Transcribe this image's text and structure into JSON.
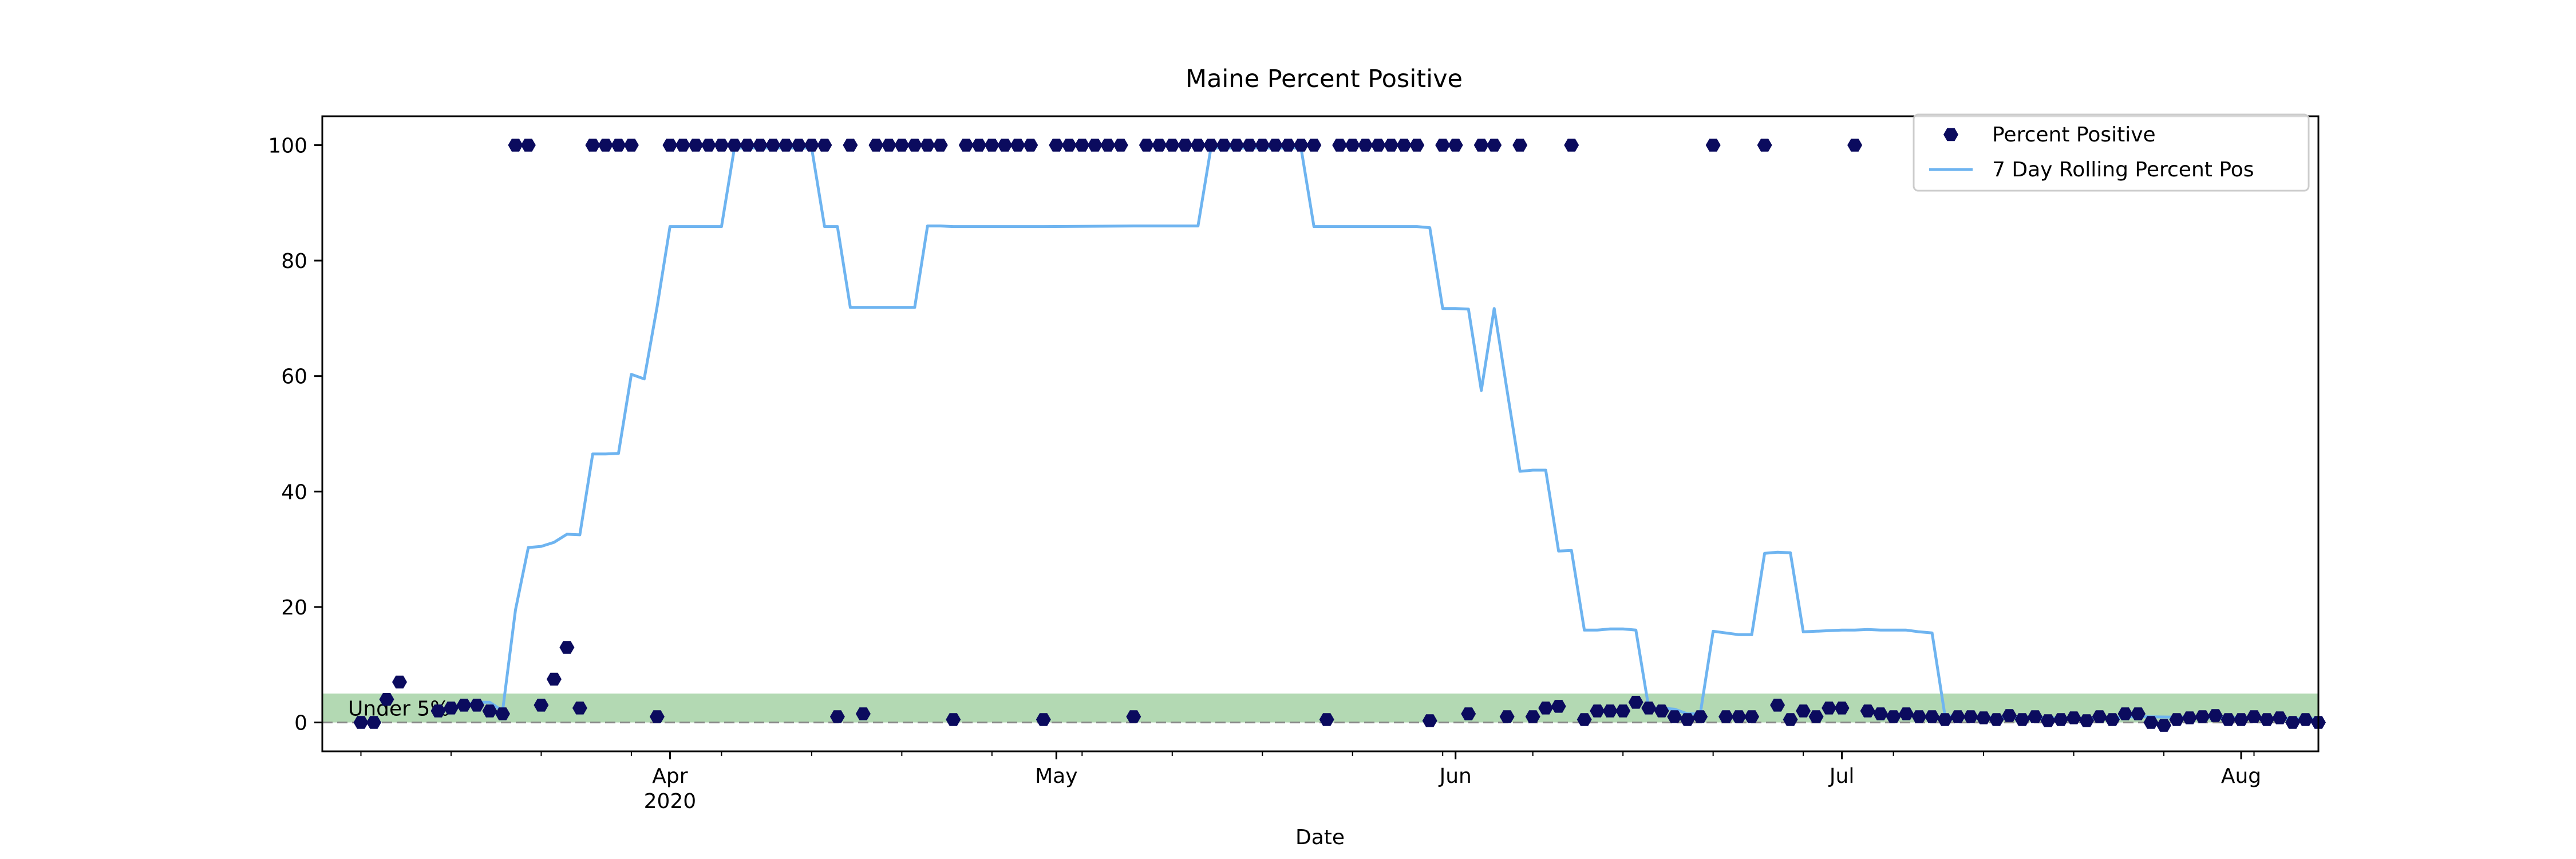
{
  "chart_data": {
    "type": "scatter",
    "title": "Maine Percent Positive",
    "xlabel": "Date",
    "ylabel": "",
    "x_range": [
      "2020-03-05",
      "2020-08-07"
    ],
    "ylim": [
      -5,
      105
    ],
    "y_ticks": [
      0,
      20,
      40,
      60,
      80,
      100
    ],
    "x_ticks": [
      {
        "date": "2020-04-01",
        "label": "Apr",
        "sublabel": "2020"
      },
      {
        "date": "2020-05-01",
        "label": "May",
        "sublabel": ""
      },
      {
        "date": "2020-06-01",
        "label": "Jun",
        "sublabel": ""
      },
      {
        "date": "2020-07-01",
        "label": "Jul",
        "sublabel": ""
      },
      {
        "date": "2020-08-01",
        "label": "Aug",
        "sublabel": ""
      }
    ],
    "grid": false,
    "legend_position": "top-right",
    "band": {
      "y0": 0,
      "y1": 5,
      "label": "Under 5%",
      "color": "#b3d9b3"
    },
    "reference_line": {
      "y": 0,
      "color": "#888888",
      "style": "dashed"
    },
    "series": [
      {
        "name": "Percent Positive",
        "kind": "scatter",
        "color": "#0b0b5e",
        "points": [
          [
            "2020-03-08",
            0
          ],
          [
            "2020-03-09",
            0
          ],
          [
            "2020-03-10",
            4
          ],
          [
            "2020-03-11",
            7
          ],
          [
            "2020-03-14",
            2
          ],
          [
            "2020-03-15",
            2.5
          ],
          [
            "2020-03-16",
            3
          ],
          [
            "2020-03-17",
            3
          ],
          [
            "2020-03-18",
            2
          ],
          [
            "2020-03-19",
            1.5
          ],
          [
            "2020-03-20",
            100
          ],
          [
            "2020-03-21",
            100
          ],
          [
            "2020-03-22",
            3
          ],
          [
            "2020-03-23",
            7.5
          ],
          [
            "2020-03-24",
            13
          ],
          [
            "2020-03-25",
            2.5
          ],
          [
            "2020-03-26",
            100
          ],
          [
            "2020-03-27",
            100
          ],
          [
            "2020-03-28",
            100
          ],
          [
            "2020-03-29",
            100
          ],
          [
            "2020-03-31",
            1
          ],
          [
            "2020-04-01",
            100
          ],
          [
            "2020-04-02",
            100
          ],
          [
            "2020-04-03",
            100
          ],
          [
            "2020-04-04",
            100
          ],
          [
            "2020-04-05",
            100
          ],
          [
            "2020-04-06",
            100
          ],
          [
            "2020-04-07",
            100
          ],
          [
            "2020-04-08",
            100
          ],
          [
            "2020-04-09",
            100
          ],
          [
            "2020-04-10",
            100
          ],
          [
            "2020-04-11",
            100
          ],
          [
            "2020-04-12",
            100
          ],
          [
            "2020-04-13",
            100
          ],
          [
            "2020-04-14",
            1
          ],
          [
            "2020-04-15",
            100
          ],
          [
            "2020-04-16",
            1.5
          ],
          [
            "2020-04-17",
            100
          ],
          [
            "2020-04-18",
            100
          ],
          [
            "2020-04-19",
            100
          ],
          [
            "2020-04-20",
            100
          ],
          [
            "2020-04-21",
            100
          ],
          [
            "2020-04-22",
            100
          ],
          [
            "2020-04-23",
            0.5
          ],
          [
            "2020-04-24",
            100
          ],
          [
            "2020-04-25",
            100
          ],
          [
            "2020-04-26",
            100
          ],
          [
            "2020-04-27",
            100
          ],
          [
            "2020-04-28",
            100
          ],
          [
            "2020-04-29",
            100
          ],
          [
            "2020-04-30",
            0.5
          ],
          [
            "2020-05-01",
            100
          ],
          [
            "2020-05-02",
            100
          ],
          [
            "2020-05-03",
            100
          ],
          [
            "2020-05-04",
            100
          ],
          [
            "2020-05-05",
            100
          ],
          [
            "2020-05-06",
            100
          ],
          [
            "2020-05-07",
            1
          ],
          [
            "2020-05-08",
            100
          ],
          [
            "2020-05-09",
            100
          ],
          [
            "2020-05-10",
            100
          ],
          [
            "2020-05-11",
            100
          ],
          [
            "2020-05-12",
            100
          ],
          [
            "2020-05-13",
            100
          ],
          [
            "2020-05-14",
            100
          ],
          [
            "2020-05-15",
            100
          ],
          [
            "2020-05-16",
            100
          ],
          [
            "2020-05-17",
            100
          ],
          [
            "2020-05-18",
            100
          ],
          [
            "2020-05-19",
            100
          ],
          [
            "2020-05-20",
            100
          ],
          [
            "2020-05-21",
            100
          ],
          [
            "2020-05-22",
            0.5
          ],
          [
            "2020-05-23",
            100
          ],
          [
            "2020-05-24",
            100
          ],
          [
            "2020-05-25",
            100
          ],
          [
            "2020-05-26",
            100
          ],
          [
            "2020-05-27",
            100
          ],
          [
            "2020-05-28",
            100
          ],
          [
            "2020-05-29",
            100
          ],
          [
            "2020-05-30",
            0.3
          ],
          [
            "2020-05-31",
            100
          ],
          [
            "2020-06-01",
            100
          ],
          [
            "2020-06-02",
            1.5
          ],
          [
            "2020-06-03",
            100
          ],
          [
            "2020-06-04",
            100
          ],
          [
            "2020-06-05",
            1
          ],
          [
            "2020-06-06",
            100
          ],
          [
            "2020-06-07",
            1
          ],
          [
            "2020-06-08",
            2.5
          ],
          [
            "2020-06-09",
            2.8
          ],
          [
            "2020-06-10",
            100
          ],
          [
            "2020-06-11",
            0.5
          ],
          [
            "2020-06-12",
            2
          ],
          [
            "2020-06-13",
            2
          ],
          [
            "2020-06-14",
            2
          ],
          [
            "2020-06-15",
            3.5
          ],
          [
            "2020-06-16",
            2.5
          ],
          [
            "2020-06-17",
            2
          ],
          [
            "2020-06-18",
            1
          ],
          [
            "2020-06-19",
            0.5
          ],
          [
            "2020-06-20",
            1
          ],
          [
            "2020-06-21",
            100
          ],
          [
            "2020-06-22",
            1
          ],
          [
            "2020-06-23",
            1
          ],
          [
            "2020-06-24",
            1
          ],
          [
            "2020-06-25",
            100
          ],
          [
            "2020-06-26",
            3
          ],
          [
            "2020-06-27",
            0.5
          ],
          [
            "2020-06-28",
            2
          ],
          [
            "2020-06-29",
            1
          ],
          [
            "2020-06-30",
            2.5
          ],
          [
            "2020-07-01",
            2.5
          ],
          [
            "2020-07-02",
            100
          ],
          [
            "2020-07-03",
            2
          ],
          [
            "2020-07-04",
            1.5
          ],
          [
            "2020-07-05",
            1
          ],
          [
            "2020-07-06",
            1.5
          ],
          [
            "2020-07-07",
            1
          ],
          [
            "2020-07-08",
            1
          ],
          [
            "2020-07-09",
            0.5
          ],
          [
            "2020-07-10",
            1
          ],
          [
            "2020-07-11",
            1
          ],
          [
            "2020-07-12",
            0.8
          ],
          [
            "2020-07-13",
            0.5
          ],
          [
            "2020-07-14",
            1.2
          ],
          [
            "2020-07-15",
            0.5
          ],
          [
            "2020-07-16",
            1
          ],
          [
            "2020-07-17",
            0.3
          ],
          [
            "2020-07-18",
            0.5
          ],
          [
            "2020-07-19",
            0.8
          ],
          [
            "2020-07-20",
            0.3
          ],
          [
            "2020-07-21",
            1
          ],
          [
            "2020-07-22",
            0.5
          ],
          [
            "2020-07-23",
            1.5
          ],
          [
            "2020-07-24",
            1.5
          ],
          [
            "2020-07-25",
            0
          ],
          [
            "2020-07-26",
            -0.5
          ],
          [
            "2020-07-27",
            0.5
          ],
          [
            "2020-07-28",
            0.8
          ],
          [
            "2020-07-29",
            1
          ],
          [
            "2020-07-30",
            1.2
          ],
          [
            "2020-07-31",
            0.5
          ],
          [
            "2020-08-01",
            0.5
          ],
          [
            "2020-08-02",
            1
          ],
          [
            "2020-08-03",
            0.5
          ],
          [
            "2020-08-04",
            0.8
          ],
          [
            "2020-08-05",
            0
          ],
          [
            "2020-08-06",
            0.5
          ],
          [
            "2020-08-07",
            0
          ]
        ]
      },
      {
        "name": "7 Day Rolling Percent Pos",
        "kind": "line",
        "color": "#6eb4f0",
        "points": [
          [
            "2020-03-14",
            2
          ],
          [
            "2020-03-15",
            2.5
          ],
          [
            "2020-03-16",
            3
          ],
          [
            "2020-03-17",
            3.5
          ],
          [
            "2020-03-18",
            3.5
          ],
          [
            "2020-03-19",
            2
          ],
          [
            "2020-03-20",
            19.5
          ],
          [
            "2020-03-21",
            30.3
          ],
          [
            "2020-03-22",
            30.5
          ],
          [
            "2020-03-23",
            31.2
          ],
          [
            "2020-03-24",
            32.6
          ],
          [
            "2020-03-25",
            32.5
          ],
          [
            "2020-03-26",
            46.5
          ],
          [
            "2020-03-27",
            46.5
          ],
          [
            "2020-03-28",
            46.6
          ],
          [
            "2020-03-29",
            60.3
          ],
          [
            "2020-03-30",
            59.5
          ],
          [
            "2020-03-31",
            72
          ],
          [
            "2020-04-01",
            85.9
          ],
          [
            "2020-04-02",
            85.9
          ],
          [
            "2020-04-03",
            85.9
          ],
          [
            "2020-04-04",
            85.9
          ],
          [
            "2020-04-05",
            85.9
          ],
          [
            "2020-04-06",
            99.5
          ],
          [
            "2020-04-07",
            99.5
          ],
          [
            "2020-04-08",
            99.5
          ],
          [
            "2020-04-09",
            99.5
          ],
          [
            "2020-04-10",
            99.5
          ],
          [
            "2020-04-11",
            99.5
          ],
          [
            "2020-04-12",
            99.5
          ],
          [
            "2020-04-13",
            85.9
          ],
          [
            "2020-04-14",
            85.9
          ],
          [
            "2020-04-15",
            71.9
          ],
          [
            "2020-04-16",
            71.9
          ],
          [
            "2020-04-17",
            71.9
          ],
          [
            "2020-04-18",
            71.9
          ],
          [
            "2020-04-19",
            71.9
          ],
          [
            "2020-04-20",
            71.9
          ],
          [
            "2020-04-21",
            86
          ],
          [
            "2020-04-22",
            86
          ],
          [
            "2020-04-23",
            85.9
          ],
          [
            "2020-04-30",
            85.9
          ],
          [
            "2020-05-07",
            86
          ],
          [
            "2020-05-12",
            86
          ],
          [
            "2020-05-13",
            99.5
          ],
          [
            "2020-05-14",
            99.5
          ],
          [
            "2020-05-19",
            99.5
          ],
          [
            "2020-05-20",
            99.5
          ],
          [
            "2020-05-21",
            85.9
          ],
          [
            "2020-05-29",
            85.9
          ],
          [
            "2020-05-30",
            85.7
          ],
          [
            "2020-05-31",
            71.7
          ],
          [
            "2020-06-01",
            71.7
          ],
          [
            "2020-06-02",
            71.6
          ],
          [
            "2020-06-03",
            57.5
          ],
          [
            "2020-06-04",
            71.7
          ],
          [
            "2020-06-05",
            57.5
          ],
          [
            "2020-06-06",
            43.5
          ],
          [
            "2020-06-07",
            43.7
          ],
          [
            "2020-06-08",
            43.7
          ],
          [
            "2020-06-09",
            29.7
          ],
          [
            "2020-06-10",
            29.8
          ],
          [
            "2020-06-11",
            16
          ],
          [
            "2020-06-12",
            16
          ],
          [
            "2020-06-13",
            16.2
          ],
          [
            "2020-06-14",
            16.2
          ],
          [
            "2020-06-15",
            16
          ],
          [
            "2020-06-16",
            2.5
          ],
          [
            "2020-06-17",
            2.5
          ],
          [
            "2020-06-18",
            2.3
          ],
          [
            "2020-06-19",
            1.5
          ],
          [
            "2020-06-20",
            1.5
          ],
          [
            "2020-06-21",
            15.8
          ],
          [
            "2020-06-22",
            15.5
          ],
          [
            "2020-06-23",
            15.2
          ],
          [
            "2020-06-24",
            15.2
          ],
          [
            "2020-06-25",
            29.3
          ],
          [
            "2020-06-26",
            29.5
          ],
          [
            "2020-06-27",
            29.4
          ],
          [
            "2020-06-28",
            15.7
          ],
          [
            "2020-06-29",
            15.8
          ],
          [
            "2020-06-30",
            15.9
          ],
          [
            "2020-07-01",
            16
          ],
          [
            "2020-07-02",
            16
          ],
          [
            "2020-07-03",
            16.1
          ],
          [
            "2020-07-04",
            16
          ],
          [
            "2020-07-05",
            16
          ],
          [
            "2020-07-06",
            16
          ],
          [
            "2020-07-07",
            15.7
          ],
          [
            "2020-07-08",
            15.5
          ],
          [
            "2020-07-09",
            1.2
          ],
          [
            "2020-07-10",
            1
          ],
          [
            "2020-07-13",
            0.9
          ],
          [
            "2020-07-16",
            0.8
          ],
          [
            "2020-07-20",
            0.7
          ],
          [
            "2020-07-24",
            1
          ],
          [
            "2020-07-28",
            0.9
          ],
          [
            "2020-08-01",
            0.8
          ],
          [
            "2020-08-04",
            0.7
          ],
          [
            "2020-08-07",
            0.6
          ]
        ]
      }
    ]
  }
}
